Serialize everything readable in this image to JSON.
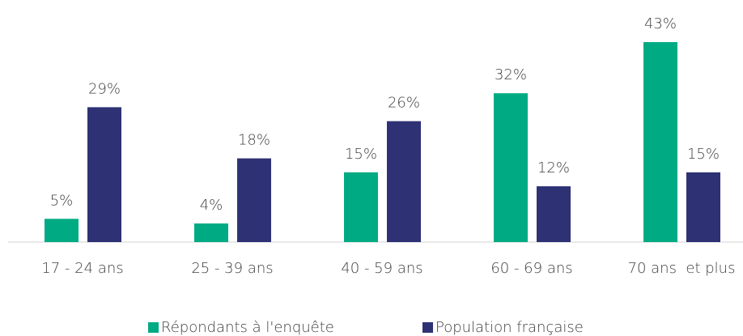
{
  "chart_data": {
    "type": "bar",
    "categories": [
      "17 - 24 ans",
      "25 - 39 ans",
      "40 - 59 ans",
      "60 - 69 ans",
      "70 ans  et plus"
    ],
    "series": [
      {
        "name": "Répondants à l'enquête",
        "color": "#00ab84",
        "values": [
          5,
          4,
          15,
          32,
          43
        ],
        "value_labels": [
          "5%",
          "4%",
          "15%",
          "32%",
          "43%"
        ]
      },
      {
        "name": "Population française",
        "color": "#2e3274",
        "values": [
          29,
          18,
          26,
          12,
          15
        ],
        "value_labels": [
          "29%",
          "18%",
          "26%",
          "12%",
          "15%"
        ]
      }
    ]
  }
}
